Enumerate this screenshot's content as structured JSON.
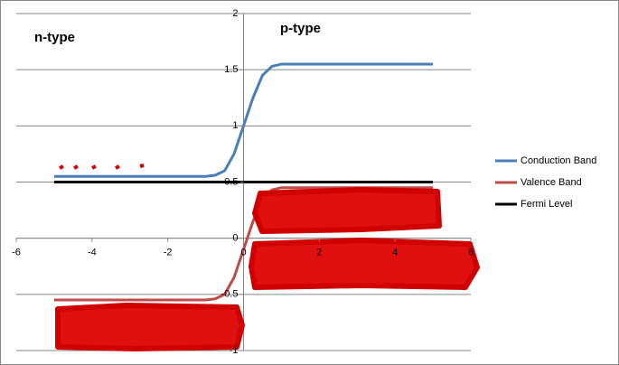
{
  "chart_data": {
    "type": "line",
    "annotations": [
      "n-type",
      "p-type"
    ],
    "x": [
      -5,
      -4,
      -3,
      -2,
      -1,
      -0.75,
      -0.5,
      -0.25,
      0,
      0.25,
      0.5,
      0.75,
      1,
      2,
      3,
      4,
      5
    ],
    "series": [
      {
        "name": "Conduction Band",
        "color": "#4a7ebb",
        "values": [
          0.55,
          0.55,
          0.55,
          0.55,
          0.55,
          0.56,
          0.6,
          0.75,
          1.0,
          1.25,
          1.45,
          1.53,
          1.55,
          1.55,
          1.55,
          1.55,
          1.55
        ]
      },
      {
        "name": "Valence Band",
        "color": "#be4b48",
        "values": [
          -0.55,
          -0.55,
          -0.55,
          -0.55,
          -0.55,
          -0.54,
          -0.5,
          -0.35,
          -0.1,
          0.15,
          0.35,
          0.43,
          0.45,
          0.45,
          0.45,
          0.45,
          0.45
        ]
      },
      {
        "name": "Fermi Level",
        "color": "#000000",
        "values": [
          0.5,
          0.5,
          0.5,
          0.5,
          0.5,
          0.5,
          0.5,
          0.5,
          0.5,
          0.5,
          0.5,
          0.5,
          0.5,
          0.5,
          0.5,
          0.5,
          0.5
        ]
      }
    ],
    "xlim": [
      -6,
      6
    ],
    "xticks": [
      -6,
      -4,
      -2,
      0,
      2,
      4,
      6
    ],
    "ylim": [
      -1,
      2
    ],
    "yticks": [
      -1,
      -0.5,
      0,
      0.5,
      1,
      1.5,
      2
    ],
    "grid": true,
    "legend": "right"
  }
}
